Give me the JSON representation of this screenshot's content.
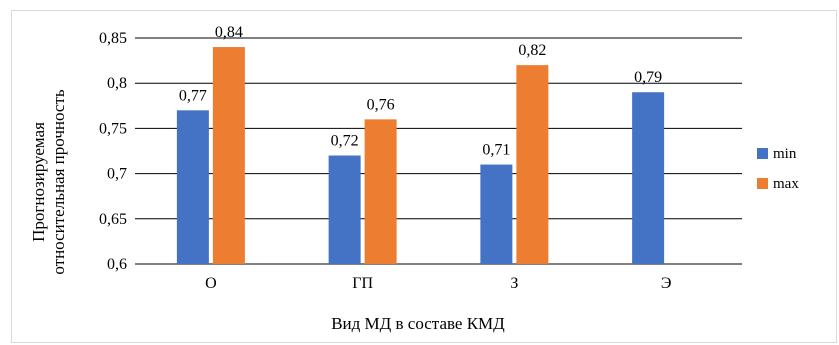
{
  "chart_data": {
    "type": "bar",
    "categories": [
      "О",
      "ГП",
      "З",
      "Э"
    ],
    "series": [
      {
        "name": "min",
        "color": "#4472C4",
        "values": [
          0.77,
          0.72,
          0.71,
          0.79
        ],
        "labels": [
          "0,77",
          "0,72",
          "0,71",
          "0,79"
        ]
      },
      {
        "name": "max",
        "color": "#ED7D31",
        "values": [
          0.84,
          0.76,
          0.82,
          null
        ],
        "labels": [
          "0,84",
          "0,76",
          "0,82",
          ""
        ]
      }
    ],
    "ylim": [
      0.6,
      0.85
    ],
    "yticks": [
      0.6,
      0.65,
      0.7,
      0.75,
      0.8,
      0.85
    ],
    "ytick_labels": [
      "0,6",
      "0,65",
      "0,7",
      "0,75",
      "0,8",
      "0,85"
    ],
    "xlabel": "Вид МД в составе КМД",
    "ylabel_line1": "Прогнозируемая",
    "ylabel_line2": "относительная прочность",
    "grid": true,
    "legend_position": "right"
  }
}
